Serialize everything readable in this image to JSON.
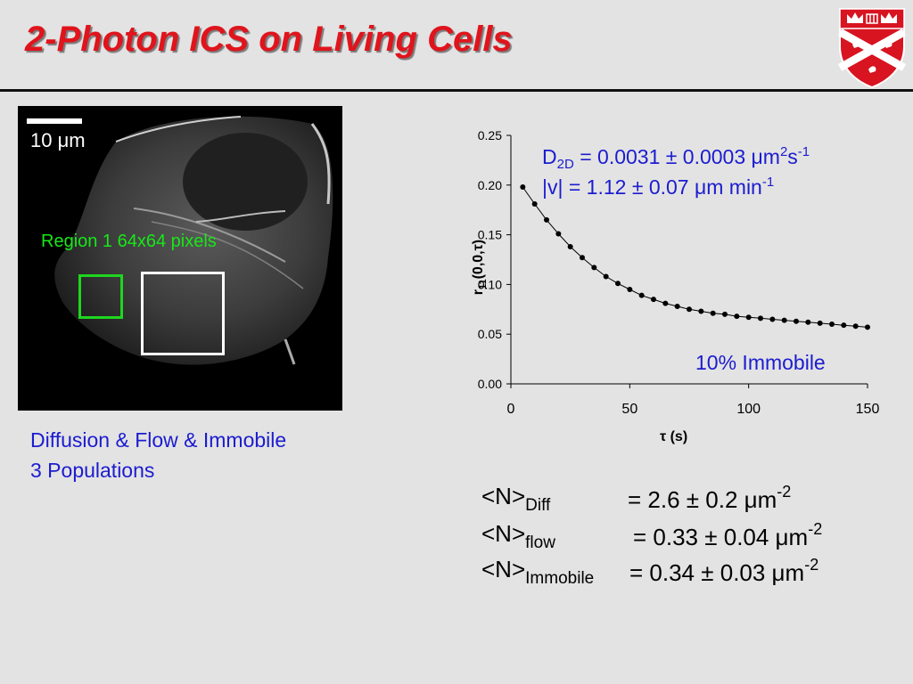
{
  "title": "2-Photon ICS on Living Cells",
  "logo_icon": "university-crest-icon",
  "image_panel": {
    "scale_label": "10 μm",
    "region_label": "Region 1 64x64 pixels"
  },
  "caption": {
    "line1": "Diffusion & Flow & Immobile",
    "line2": "3 Populations"
  },
  "annotations": {
    "d_prefix": "D",
    "d_sub": "2D",
    "d_value": " = 0.0031 ± 0.0003 μm",
    "d_sup1": "2",
    "d_unit2": "s",
    "d_sup2": "-1",
    "v_value": "|v|  = 1.12 ± 0.07 μm min",
    "v_sup": "-1",
    "immobile": "10% Immobile"
  },
  "chart_data": {
    "type": "scatter",
    "xlabel": "τ (s)",
    "ylabel_main": "r",
    "ylabel_sub": "11",
    "ylabel_tail": "(0,0,τ)",
    "xlim": [
      0,
      150
    ],
    "ylim": [
      0,
      0.25
    ],
    "xticks": [
      "0",
      "50",
      "100",
      "150"
    ],
    "yticks": [
      "0.00",
      "0.05",
      "0.10",
      "0.15",
      "0.20",
      "0.25"
    ],
    "points": [
      [
        5,
        0.198
      ],
      [
        10,
        0.181
      ],
      [
        15,
        0.165
      ],
      [
        20,
        0.151
      ],
      [
        25,
        0.138
      ],
      [
        30,
        0.127
      ],
      [
        35,
        0.117
      ],
      [
        40,
        0.108
      ],
      [
        45,
        0.101
      ],
      [
        50,
        0.095
      ],
      [
        55,
        0.089
      ],
      [
        60,
        0.085
      ],
      [
        65,
        0.081
      ],
      [
        70,
        0.078
      ],
      [
        75,
        0.075
      ],
      [
        80,
        0.073
      ],
      [
        85,
        0.071
      ],
      [
        90,
        0.07
      ],
      [
        95,
        0.068
      ],
      [
        100,
        0.067
      ],
      [
        105,
        0.066
      ],
      [
        110,
        0.065
      ],
      [
        115,
        0.064
      ],
      [
        120,
        0.063
      ],
      [
        125,
        0.062
      ],
      [
        130,
        0.061
      ],
      [
        135,
        0.06
      ],
      [
        140,
        0.059
      ],
      [
        145,
        0.058
      ],
      [
        150,
        0.057
      ]
    ],
    "fit": true,
    "grid": false
  },
  "numbers": [
    {
      "label": "<N>",
      "sub": "Diff",
      "value": "= 2.6 ± 0.2 μm",
      "sup": "-2"
    },
    {
      "label": "<N>",
      "sub": "flow",
      "value": "= 0.33 ± 0.04 μm",
      "sup": "-2"
    },
    {
      "label": "<N>",
      "sub": "Immobile",
      "value": "= 0.34 ± 0.03 μm",
      "sup": "-2"
    }
  ]
}
